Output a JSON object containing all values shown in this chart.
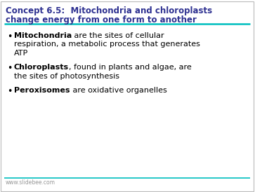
{
  "title_line1": "Concept 6.5:  Mitochondria and chloroplasts",
  "title_line2": "change energy from one form to another",
  "title_color": "#2E3191",
  "title_fontsize": 8.5,
  "separator_color": "#00BFBF",
  "background_color": "#FFFFFF",
  "border_color": "#BBBBBB",
  "bullet_color": "#000000",
  "bullet_fontsize": 8.0,
  "items": [
    {
      "bold": "Mitochondria",
      "normal": " are the sites of cellular\nrespiration, a metabolic process that generates\nATP"
    },
    {
      "bold": "Chloroplasts",
      "normal": ", found in plants and algae, are\nthe sites of photosynthesis"
    },
    {
      "bold": "Peroxisomes",
      "normal": " are oxidative organelles"
    }
  ],
  "footer_text": "www.slidebee.com",
  "footer_color": "#999999",
  "footer_fontsize": 5.5
}
